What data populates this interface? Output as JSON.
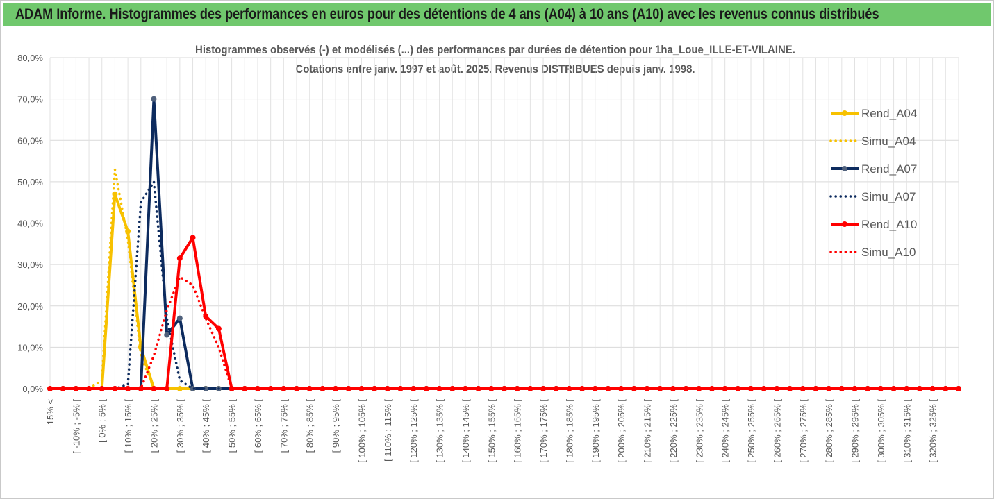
{
  "banner": {
    "title": "ADAM Informe. Histogrammes des performances en euros pour des détentions de 4 ans (A04) à 10 ans (A10) avec les revenus connus distribués"
  },
  "chart_data": {
    "type": "line",
    "title": "Histogrammes observés (-) et modélisés (...) des performances par durées de détention pour 1ha_Loue_ILLE-ET-VILAINE.",
    "subtitle": "Cotations entre janv. 1997 et août. 2025. Revenus DISTRIBUES depuis janv. 1998.",
    "xlabel": "",
    "ylabel": "",
    "ylim": [
      0,
      80
    ],
    "yticks": [
      "0,0%",
      "10,0%",
      "20,0%",
      "30,0%",
      "40,0%",
      "50,0%",
      "60,0%",
      "70,0%",
      "80,0%"
    ],
    "grid": true,
    "legend_position": "right",
    "x_point_count": 71,
    "x_tick_labels": [
      "-15% <",
      "[ -10% ; -5% [",
      "[ 0% ; 5% [",
      "[ 10% ; 15% [",
      "[ 20% ; 25% [",
      "[ 30% ; 35% [",
      "[ 40% ; 45% [",
      "[ 50% ; 55% [",
      "[ 60% ; 65% [",
      "[ 70% ; 75% [",
      "[ 80% ; 85% [",
      "[ 90% ; 95% [",
      "[ 100% ; 105% [",
      "[ 110% ; 115% [",
      "[ 120% ; 125% [",
      "[ 130% ; 135% [",
      "[ 140% ; 145% [",
      "[ 150% ; 155% [",
      "[ 160% ; 165% [",
      "[ 170% ; 175% [",
      "[ 180% ; 185% [",
      "[ 190% ; 195% [",
      "[ 200% ; 205% [",
      "[ 210% ; 215% [",
      "[ 220% ; 225% [",
      "[ 230% ; 235% [",
      "[ 240% ; 245% [",
      "[ 250% ; 255% [",
      "[ 260% ; 265% [",
      "[ 270% ; 275% [",
      "[ 280% ; 285% [",
      "[ 290% ; 295% [",
      "[ 300% ; 305% [",
      "[ 310% ; 315% [",
      "[ 320% ; 325% ["
    ],
    "series": [
      {
        "name": "Rend_A04",
        "color": "#f7c100",
        "style": "solid",
        "marker": true,
        "values": [
          0,
          0,
          0,
          0,
          0,
          47,
          38,
          10,
          0,
          0,
          0,
          0,
          0,
          0,
          0,
          0,
          0,
          0,
          0,
          0,
          0,
          0,
          0,
          0,
          0,
          0,
          0,
          0,
          0,
          0,
          0,
          0,
          0,
          0,
          0,
          0,
          0,
          0,
          0,
          0,
          0,
          0,
          0,
          0,
          0,
          0,
          0,
          0,
          0,
          0,
          0,
          0,
          0,
          0,
          0,
          0,
          0,
          0,
          0,
          0,
          0,
          0,
          0,
          0,
          0,
          0,
          0,
          0,
          0,
          0,
          0
        ]
      },
      {
        "name": "Simu_A04",
        "color": "#f7c100",
        "style": "dotted",
        "marker": false,
        "values": [
          0,
          0,
          0,
          0,
          2,
          53,
          36,
          8,
          0,
          0,
          0,
          0,
          0,
          0,
          0,
          0,
          0,
          0,
          0,
          0,
          0,
          0,
          0,
          0,
          0,
          0,
          0,
          0,
          0,
          0,
          0,
          0,
          0,
          0,
          0,
          0,
          0,
          0,
          0,
          0,
          0,
          0,
          0,
          0,
          0,
          0,
          0,
          0,
          0,
          0,
          0,
          0,
          0,
          0,
          0,
          0,
          0,
          0,
          0,
          0,
          0,
          0,
          0,
          0,
          0,
          0,
          0,
          0,
          0,
          0,
          0
        ]
      },
      {
        "name": "Rend_A07",
        "color": "#0d2b5e",
        "style": "solid",
        "marker": true,
        "values": [
          0,
          0,
          0,
          0,
          0,
          0,
          0,
          0,
          70,
          13,
          17,
          0,
          0,
          0,
          0,
          0,
          0,
          0,
          0,
          0,
          0,
          0,
          0,
          0,
          0,
          0,
          0,
          0,
          0,
          0,
          0,
          0,
          0,
          0,
          0,
          0,
          0,
          0,
          0,
          0,
          0,
          0,
          0,
          0,
          0,
          0,
          0,
          0,
          0,
          0,
          0,
          0,
          0,
          0,
          0,
          0,
          0,
          0,
          0,
          0,
          0,
          0,
          0,
          0,
          0,
          0,
          0,
          0,
          0,
          0,
          0
        ]
      },
      {
        "name": "Simu_A07",
        "color": "#0d2b5e",
        "style": "dotted",
        "marker": false,
        "values": [
          0,
          0,
          0,
          0,
          0,
          0,
          1,
          45,
          50,
          17,
          2,
          0,
          0,
          0,
          0,
          0,
          0,
          0,
          0,
          0,
          0,
          0,
          0,
          0,
          0,
          0,
          0,
          0,
          0,
          0,
          0,
          0,
          0,
          0,
          0,
          0,
          0,
          0,
          0,
          0,
          0,
          0,
          0,
          0,
          0,
          0,
          0,
          0,
          0,
          0,
          0,
          0,
          0,
          0,
          0,
          0,
          0,
          0,
          0,
          0,
          0,
          0,
          0,
          0,
          0,
          0,
          0,
          0,
          0,
          0,
          0
        ]
      },
      {
        "name": "Rend_A10",
        "color": "#ff0000",
        "style": "solid",
        "marker": true,
        "values": [
          0,
          0,
          0,
          0,
          0,
          0,
          0,
          0,
          0,
          0,
          31.5,
          36.5,
          17.5,
          14.5,
          0,
          0,
          0,
          0,
          0,
          0,
          0,
          0,
          0,
          0,
          0,
          0,
          0,
          0,
          0,
          0,
          0,
          0,
          0,
          0,
          0,
          0,
          0,
          0,
          0,
          0,
          0,
          0,
          0,
          0,
          0,
          0,
          0,
          0,
          0,
          0,
          0,
          0,
          0,
          0,
          0,
          0,
          0,
          0,
          0,
          0,
          0,
          0,
          0,
          0,
          0,
          0,
          0,
          0,
          0,
          0,
          0
        ]
      },
      {
        "name": "Simu_A10",
        "color": "#ff0000",
        "style": "dotted",
        "marker": false,
        "values": [
          0,
          0,
          0,
          0,
          0,
          0,
          0,
          0,
          8,
          19,
          27,
          25,
          17,
          10,
          0,
          0,
          0,
          0,
          0,
          0,
          0,
          0,
          0,
          0,
          0,
          0,
          0,
          0,
          0,
          0,
          0,
          0,
          0,
          0,
          0,
          0,
          0,
          0,
          0,
          0,
          0,
          0,
          0,
          0,
          0,
          0,
          0,
          0,
          0,
          0,
          0,
          0,
          0,
          0,
          0,
          0,
          0,
          0,
          0,
          0,
          0,
          0,
          0,
          0,
          0,
          0,
          0,
          0,
          0,
          0,
          0
        ]
      }
    ]
  }
}
